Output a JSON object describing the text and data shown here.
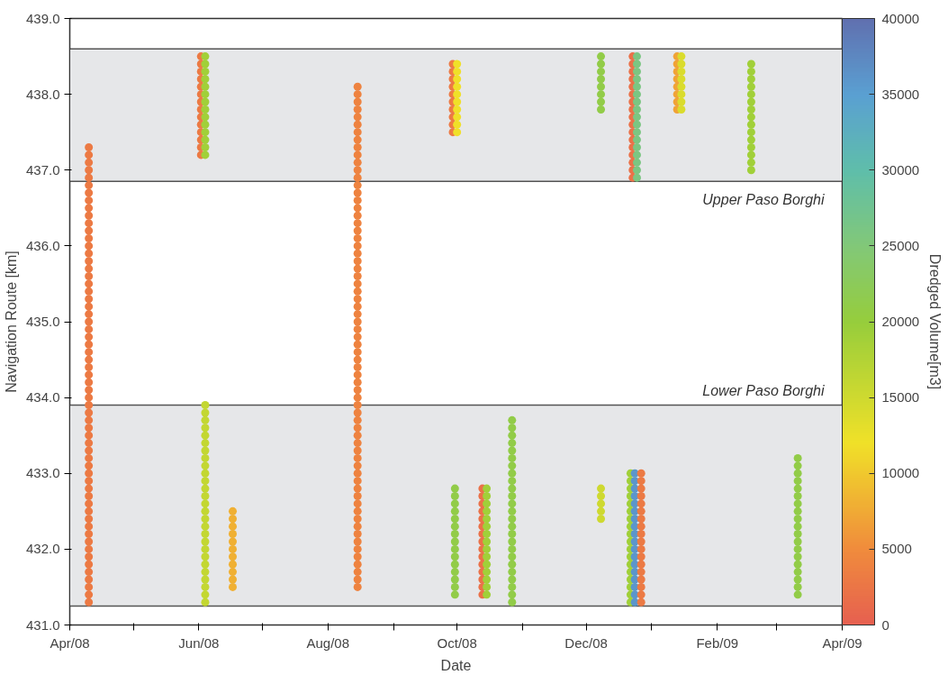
{
  "chart_data": {
    "type": "scatter",
    "xlabel": "Date",
    "ylabel": "Navigation Route [km]",
    "clabel": "Dredged Volume[m3]",
    "xlim": [
      "2008-04-01",
      "2009-04-01"
    ],
    "xticks": [
      {
        "value": "2008-04-01",
        "label": "Apr/08"
      },
      {
        "value": "2008-05-01",
        "label": null
      },
      {
        "value": "2008-06-01",
        "label": "Jun/08"
      },
      {
        "value": "2008-07-01",
        "label": null
      },
      {
        "value": "2008-08-01",
        "label": "Aug/08"
      },
      {
        "value": "2008-09-01",
        "label": null
      },
      {
        "value": "2008-10-01",
        "label": "Oct/08"
      },
      {
        "value": "2008-11-01",
        "label": null
      },
      {
        "value": "2008-12-01",
        "label": "Dec/08"
      },
      {
        "value": "2009-01-01",
        "label": null
      },
      {
        "value": "2009-02-01",
        "label": "Feb/09"
      },
      {
        "value": "2009-03-01",
        "label": null
      },
      {
        "value": "2009-04-01",
        "label": "Apr/09"
      }
    ],
    "ylim": [
      431,
      439
    ],
    "yticks": [
      {
        "value": 431,
        "label": "431.0"
      },
      {
        "value": 432,
        "label": "432.0"
      },
      {
        "value": 433,
        "label": "433.0"
      },
      {
        "value": 434,
        "label": "434.0"
      },
      {
        "value": 435,
        "label": "435.0"
      },
      {
        "value": 436,
        "label": "436.0"
      },
      {
        "value": 437,
        "label": "437.0"
      },
      {
        "value": 438,
        "label": "438.0"
      },
      {
        "value": 439,
        "label": "439.0"
      }
    ],
    "clim": [
      0,
      40000
    ],
    "cticks": [
      0,
      5000,
      10000,
      15000,
      20000,
      25000,
      30000,
      35000,
      40000
    ],
    "grid": false,
    "marker": "circle",
    "bands": [
      {
        "axis": "y",
        "from": 436.85,
        "to": 438.6,
        "label": "Upper Paso Borghi",
        "color": "#e6e7e9"
      },
      {
        "axis": "y",
        "from": 431.25,
        "to": 433.9,
        "label": "Lower Paso Borghi",
        "color": "#e6e7e9"
      }
    ],
    "series": [
      {
        "x": [
          "2008-04-10",
          "2008-04-10",
          "2008-04-10",
          "2008-04-10",
          "2008-04-10",
          "2008-04-10",
          "2008-04-10",
          "2008-04-10",
          "2008-04-10",
          "2008-04-10",
          "2008-04-10",
          "2008-04-10",
          "2008-04-10",
          "2008-04-10",
          "2008-04-10",
          "2008-04-10",
          "2008-04-10",
          "2008-04-10",
          "2008-04-10",
          "2008-04-10",
          "2008-04-10",
          "2008-04-10",
          "2008-04-10",
          "2008-04-10",
          "2008-04-10",
          "2008-04-10",
          "2008-04-10",
          "2008-04-10",
          "2008-04-10",
          "2008-04-10",
          "2008-04-10",
          "2008-04-10",
          "2008-04-10",
          "2008-04-10",
          "2008-04-10",
          "2008-04-10",
          "2008-04-10",
          "2008-04-10",
          "2008-04-10",
          "2008-04-10",
          "2008-04-10",
          "2008-04-10",
          "2008-04-10",
          "2008-04-10",
          "2008-04-10",
          "2008-04-10",
          "2008-04-10",
          "2008-04-10",
          "2008-04-10",
          "2008-04-10",
          "2008-04-10",
          "2008-04-10",
          "2008-04-10",
          "2008-04-10",
          "2008-04-10",
          "2008-04-10",
          "2008-04-10",
          "2008-04-10",
          "2008-04-10",
          "2008-04-10",
          "2008-04-10"
        ],
        "values": [
          431.3,
          431.4,
          431.5,
          431.6,
          431.7,
          431.8,
          431.9,
          432.0,
          432.1,
          432.2,
          432.3,
          432.4,
          432.5,
          432.6,
          432.7,
          432.8,
          432.9,
          433.0,
          433.1,
          433.2,
          433.3,
          433.4,
          433.5,
          433.6,
          433.7,
          433.8,
          433.9,
          434.0,
          434.1,
          434.2,
          434.3,
          434.4,
          434.5,
          434.6,
          434.7,
          434.8,
          434.9,
          435.0,
          435.1,
          435.2,
          435.3,
          435.4,
          435.5,
          435.6,
          435.7,
          435.8,
          435.9,
          436.0,
          436.1,
          436.2,
          436.3,
          436.4,
          436.5,
          436.6,
          436.7,
          436.8,
          436.9,
          437.0,
          437.1,
          437.2,
          437.3
        ],
        "cvalues": [
          3000,
          3000,
          3000,
          3000,
          3000,
          3000,
          3000,
          3000,
          3000,
          3000,
          3000,
          3000,
          3000,
          3000,
          3000,
          3000,
          3000,
          3000,
          3000,
          3000,
          3000,
          3000,
          3000,
          3000,
          3000,
          3000,
          3000,
          3000,
          3000,
          3000,
          3000,
          3000,
          3000,
          3000,
          3000,
          3000,
          3000,
          3000,
          3000,
          3000,
          3000,
          3000,
          3000,
          3000,
          3000,
          3000,
          3000,
          3000,
          3000,
          3000,
          3000,
          3000,
          3000,
          3000,
          3000,
          3000,
          3000,
          3000,
          3000,
          3000,
          3000
        ]
      },
      {
        "x": [
          "2008-06-02",
          "2008-06-02",
          "2008-06-02",
          "2008-06-02",
          "2008-06-02",
          "2008-06-02",
          "2008-06-02",
          "2008-06-02",
          "2008-06-02",
          "2008-06-02",
          "2008-06-02",
          "2008-06-02",
          "2008-06-02",
          "2008-06-02"
        ],
        "values": [
          437.2,
          437.3,
          437.4,
          437.5,
          437.6,
          437.7,
          437.8,
          437.9,
          438.0,
          438.1,
          438.2,
          438.3,
          438.4,
          438.5
        ],
        "cvalues": [
          3000,
          3000,
          3000,
          3000,
          3000,
          3000,
          3000,
          3000,
          3000,
          3000,
          3000,
          3000,
          3000,
          3000
        ]
      },
      {
        "x": [
          "2008-06-04",
          "2008-06-04",
          "2008-06-04",
          "2008-06-04",
          "2008-06-04",
          "2008-06-04",
          "2008-06-04",
          "2008-06-04",
          "2008-06-04",
          "2008-06-04",
          "2008-06-04",
          "2008-06-04",
          "2008-06-04",
          "2008-06-04"
        ],
        "values": [
          437.2,
          437.3,
          437.4,
          437.5,
          437.6,
          437.7,
          437.8,
          437.9,
          438.0,
          438.1,
          438.2,
          438.3,
          438.4,
          438.5
        ],
        "cvalues": [
          19000,
          19000,
          19000,
          19000,
          19000,
          19000,
          19000,
          19000,
          19000,
          19000,
          19000,
          19000,
          19000,
          19000
        ]
      },
      {
        "x": [
          "2008-06-04",
          "2008-06-04",
          "2008-06-04",
          "2008-06-04",
          "2008-06-04",
          "2008-06-04",
          "2008-06-04",
          "2008-06-04",
          "2008-06-04",
          "2008-06-04",
          "2008-06-04",
          "2008-06-04",
          "2008-06-04",
          "2008-06-04",
          "2008-06-04",
          "2008-06-04",
          "2008-06-04",
          "2008-06-04",
          "2008-06-04",
          "2008-06-04",
          "2008-06-04",
          "2008-06-04",
          "2008-06-04",
          "2008-06-04",
          "2008-06-04",
          "2008-06-04",
          "2008-06-04"
        ],
        "values": [
          431.3,
          431.4,
          431.5,
          431.6,
          431.7,
          431.8,
          431.9,
          432.0,
          432.1,
          432.2,
          432.3,
          432.4,
          432.5,
          432.6,
          432.7,
          432.8,
          432.9,
          433.0,
          433.1,
          433.2,
          433.3,
          433.4,
          433.5,
          433.6,
          433.7,
          433.8,
          433.9
        ],
        "cvalues": [
          16000,
          16000,
          16000,
          16000,
          16000,
          16000,
          16000,
          16000,
          16000,
          16000,
          16000,
          16000,
          16000,
          16000,
          16000,
          16000,
          16000,
          16000,
          16000,
          16000,
          16000,
          16000,
          16000,
          16000,
          16000,
          16000,
          16000
        ]
      },
      {
        "x": [
          "2008-06-17",
          "2008-06-17",
          "2008-06-17",
          "2008-06-17",
          "2008-06-17",
          "2008-06-17",
          "2008-06-17",
          "2008-06-17",
          "2008-06-17",
          "2008-06-17",
          "2008-06-17"
        ],
        "values": [
          431.5,
          431.6,
          431.7,
          431.8,
          431.9,
          432.0,
          432.1,
          432.2,
          432.3,
          432.4,
          432.5
        ],
        "cvalues": [
          8000,
          8000,
          8000,
          8000,
          8000,
          8000,
          8000,
          8000,
          8000,
          8000,
          8000
        ]
      },
      {
        "x": [
          "2008-08-15",
          "2008-08-15",
          "2008-08-15",
          "2008-08-15",
          "2008-08-15",
          "2008-08-15",
          "2008-08-15",
          "2008-08-15",
          "2008-08-15",
          "2008-08-15",
          "2008-08-15",
          "2008-08-15",
          "2008-08-15",
          "2008-08-15",
          "2008-08-15",
          "2008-08-15",
          "2008-08-15",
          "2008-08-15",
          "2008-08-15",
          "2008-08-15",
          "2008-08-15",
          "2008-08-15",
          "2008-08-15",
          "2008-08-15",
          "2008-08-15",
          "2008-08-15",
          "2008-08-15",
          "2008-08-15",
          "2008-08-15",
          "2008-08-15",
          "2008-08-15",
          "2008-08-15",
          "2008-08-15",
          "2008-08-15",
          "2008-08-15",
          "2008-08-15",
          "2008-08-15",
          "2008-08-15",
          "2008-08-15",
          "2008-08-15",
          "2008-08-15",
          "2008-08-15",
          "2008-08-15",
          "2008-08-15",
          "2008-08-15",
          "2008-08-15",
          "2008-08-15",
          "2008-08-15",
          "2008-08-15",
          "2008-08-15",
          "2008-08-15",
          "2008-08-15",
          "2008-08-15",
          "2008-08-15",
          "2008-08-15",
          "2008-08-15",
          "2008-08-15",
          "2008-08-15",
          "2008-08-15",
          "2008-08-15",
          "2008-08-15",
          "2008-08-15",
          "2008-08-15",
          "2008-08-15",
          "2008-08-15",
          "2008-08-15",
          "2008-08-15"
        ],
        "values": [
          431.5,
          431.6,
          431.7,
          431.8,
          431.9,
          432.0,
          432.1,
          432.2,
          432.3,
          432.4,
          432.5,
          432.6,
          432.7,
          432.8,
          432.9,
          433.0,
          433.1,
          433.2,
          433.3,
          433.4,
          433.5,
          433.6,
          433.7,
          433.8,
          433.9,
          434.0,
          434.1,
          434.2,
          434.3,
          434.4,
          434.5,
          434.6,
          434.7,
          434.8,
          434.9,
          435.0,
          435.1,
          435.2,
          435.3,
          435.4,
          435.5,
          435.6,
          435.7,
          435.8,
          435.9,
          436.0,
          436.1,
          436.2,
          436.3,
          436.4,
          436.5,
          436.6,
          436.7,
          436.8,
          436.9,
          437.0,
          437.1,
          437.2,
          437.3,
          437.4,
          437.5,
          437.6,
          437.7,
          437.8,
          437.9,
          438.0,
          438.1
        ],
        "cvalues": [
          4000,
          4000,
          4000,
          4000,
          4000,
          4000,
          4000,
          4000,
          4000,
          4000,
          4000,
          4000,
          4000,
          4000,
          4000,
          4000,
          4000,
          4000,
          4000,
          4000,
          4000,
          4000,
          4000,
          4000,
          4000,
          4000,
          4000,
          4000,
          4000,
          4000,
          4000,
          4000,
          4000,
          4000,
          4000,
          4000,
          4000,
          4000,
          4000,
          4000,
          4000,
          4000,
          4000,
          4000,
          4000,
          4000,
          4000,
          4000,
          4000,
          4000,
          4000,
          4000,
          4000,
          4000,
          4000,
          4000,
          4000,
          4000,
          4000,
          4000,
          4000,
          4000,
          4000,
          4000,
          4000,
          4000,
          4000
        ]
      },
      {
        "x": [
          "2008-09-29",
          "2008-09-29",
          "2008-09-29",
          "2008-09-29",
          "2008-09-29",
          "2008-09-29",
          "2008-09-29",
          "2008-09-29",
          "2008-09-29",
          "2008-09-29"
        ],
        "values": [
          437.5,
          437.6,
          437.7,
          437.8,
          437.9,
          438.0,
          438.1,
          438.2,
          438.3,
          438.4
        ],
        "cvalues": [
          3000,
          3000,
          3000,
          3000,
          3000,
          3000,
          3000,
          3000,
          3000,
          3000
        ]
      },
      {
        "x": [
          "2008-10-01",
          "2008-10-01",
          "2008-10-01",
          "2008-10-01",
          "2008-10-01",
          "2008-10-01",
          "2008-10-01",
          "2008-10-01",
          "2008-10-01",
          "2008-10-01"
        ],
        "values": [
          437.5,
          437.6,
          437.7,
          437.8,
          437.9,
          438.0,
          438.1,
          438.2,
          438.3,
          438.4
        ],
        "cvalues": [
          12000,
          12000,
          12000,
          12000,
          12000,
          12000,
          12000,
          12000,
          12000,
          12000
        ]
      },
      {
        "x": [
          "2008-09-30",
          "2008-09-30",
          "2008-09-30",
          "2008-09-30",
          "2008-09-30",
          "2008-09-30",
          "2008-09-30",
          "2008-09-30",
          "2008-09-30",
          "2008-09-30",
          "2008-09-30",
          "2008-09-30",
          "2008-09-30",
          "2008-09-30",
          "2008-09-30"
        ],
        "values": [
          431.4,
          431.5,
          431.6,
          431.7,
          431.8,
          431.9,
          432.0,
          432.1,
          432.2,
          432.3,
          432.4,
          432.5,
          432.6,
          432.7,
          432.8
        ],
        "cvalues": [
          21000,
          21000,
          21000,
          21000,
          21000,
          21000,
          21000,
          21000,
          21000,
          21000,
          21000,
          21000,
          21000,
          21000,
          21000
        ]
      },
      {
        "x": [
          "2008-10-13",
          "2008-10-13",
          "2008-10-13",
          "2008-10-13",
          "2008-10-13",
          "2008-10-13",
          "2008-10-13",
          "2008-10-13",
          "2008-10-13",
          "2008-10-13",
          "2008-10-13",
          "2008-10-13",
          "2008-10-13",
          "2008-10-13",
          "2008-10-13"
        ],
        "values": [
          431.4,
          431.5,
          431.6,
          431.7,
          431.8,
          431.9,
          432.0,
          432.1,
          432.2,
          432.3,
          432.4,
          432.5,
          432.6,
          432.7,
          432.8
        ],
        "cvalues": [
          2000,
          2000,
          2000,
          2000,
          2000,
          2000,
          2000,
          2000,
          2000,
          2000,
          2000,
          2000,
          2000,
          2000,
          2000
        ]
      },
      {
        "x": [
          "2008-10-15",
          "2008-10-15",
          "2008-10-15",
          "2008-10-15",
          "2008-10-15",
          "2008-10-15",
          "2008-10-15",
          "2008-10-15",
          "2008-10-15",
          "2008-10-15",
          "2008-10-15",
          "2008-10-15",
          "2008-10-15",
          "2008-10-15",
          "2008-10-15"
        ],
        "values": [
          431.4,
          431.5,
          431.6,
          431.7,
          431.8,
          431.9,
          432.0,
          432.1,
          432.2,
          432.3,
          432.4,
          432.5,
          432.6,
          432.7,
          432.8
        ],
        "cvalues": [
          19000,
          19000,
          19000,
          19000,
          19000,
          19000,
          19000,
          19000,
          19000,
          19000,
          19000,
          19000,
          19000,
          19000,
          19000
        ]
      },
      {
        "x": [
          "2008-10-27",
          "2008-10-27",
          "2008-10-27",
          "2008-10-27",
          "2008-10-27",
          "2008-10-27",
          "2008-10-27",
          "2008-10-27",
          "2008-10-27",
          "2008-10-27",
          "2008-10-27",
          "2008-10-27",
          "2008-10-27",
          "2008-10-27",
          "2008-10-27",
          "2008-10-27",
          "2008-10-27",
          "2008-10-27",
          "2008-10-27",
          "2008-10-27",
          "2008-10-27",
          "2008-10-27",
          "2008-10-27",
          "2008-10-27",
          "2008-10-27"
        ],
        "values": [
          431.3,
          431.4,
          431.5,
          431.6,
          431.7,
          431.8,
          431.9,
          432.0,
          432.1,
          432.2,
          432.3,
          432.4,
          432.5,
          432.6,
          432.7,
          432.8,
          432.9,
          433.0,
          433.1,
          433.2,
          433.3,
          433.4,
          433.5,
          433.6,
          433.7
        ],
        "cvalues": [
          21000,
          21000,
          21000,
          21000,
          21000,
          21000,
          21000,
          21000,
          21000,
          21000,
          21000,
          21000,
          21000,
          21000,
          21000,
          21000,
          21000,
          21000,
          21000,
          21000,
          21000,
          21000,
          21000,
          21000,
          21000
        ]
      },
      {
        "x": [
          "2008-12-08",
          "2008-12-08",
          "2008-12-08",
          "2008-12-08",
          "2008-12-08",
          "2008-12-08",
          "2008-12-08",
          "2008-12-08"
        ],
        "values": [
          437.8,
          437.9,
          438.0,
          438.1,
          438.2,
          438.3,
          438.4,
          438.5
        ],
        "cvalues": [
          21000,
          21000,
          21000,
          21000,
          21000,
          21000,
          21000,
          21000
        ]
      },
      {
        "x": [
          "2008-12-08",
          "2008-12-08",
          "2008-12-08",
          "2008-12-08",
          "2008-12-08"
        ],
        "values": [
          432.4,
          432.5,
          432.6,
          432.7,
          432.8
        ],
        "cvalues": [
          15000,
          15000,
          15000,
          15000,
          15000
        ]
      },
      {
        "x": [
          "2008-12-23",
          "2008-12-23",
          "2008-12-23",
          "2008-12-23",
          "2008-12-23",
          "2008-12-23",
          "2008-12-23",
          "2008-12-23",
          "2008-12-23",
          "2008-12-23",
          "2008-12-23",
          "2008-12-23",
          "2008-12-23",
          "2008-12-23",
          "2008-12-23",
          "2008-12-23",
          "2008-12-23"
        ],
        "values": [
          436.9,
          437.0,
          437.1,
          437.2,
          437.3,
          437.4,
          437.5,
          437.6,
          437.7,
          437.8,
          437.9,
          438.0,
          438.1,
          438.2,
          438.3,
          438.4,
          438.5
        ],
        "cvalues": [
          2000,
          2000,
          2000,
          2000,
          2000,
          2000,
          2000,
          2000,
          2000,
          2000,
          2000,
          2000,
          2000,
          2000,
          2000,
          2000,
          2000
        ]
      },
      {
        "x": [
          "2008-12-25",
          "2008-12-25",
          "2008-12-25",
          "2008-12-25",
          "2008-12-25",
          "2008-12-25",
          "2008-12-25",
          "2008-12-25",
          "2008-12-25",
          "2008-12-25",
          "2008-12-25",
          "2008-12-25",
          "2008-12-25",
          "2008-12-25",
          "2008-12-25",
          "2008-12-25",
          "2008-12-25"
        ],
        "values": [
          436.9,
          437.0,
          437.1,
          437.2,
          437.3,
          437.4,
          437.5,
          437.6,
          437.7,
          437.8,
          437.9,
          438.0,
          438.1,
          438.2,
          438.3,
          438.4,
          438.5
        ],
        "cvalues": [
          26000,
          26000,
          26000,
          26000,
          26000,
          26000,
          26000,
          26000,
          26000,
          26000,
          26000,
          26000,
          26000,
          26000,
          26000,
          26000,
          26000
        ]
      },
      {
        "x": [
          "2008-12-22",
          "2008-12-22",
          "2008-12-22",
          "2008-12-22",
          "2008-12-22",
          "2008-12-22",
          "2008-12-22",
          "2008-12-22",
          "2008-12-22",
          "2008-12-22",
          "2008-12-22",
          "2008-12-22",
          "2008-12-22",
          "2008-12-22",
          "2008-12-22",
          "2008-12-22",
          "2008-12-22",
          "2008-12-22"
        ],
        "values": [
          431.3,
          431.4,
          431.5,
          431.6,
          431.7,
          431.8,
          431.9,
          432.0,
          432.1,
          432.2,
          432.3,
          432.4,
          432.5,
          432.6,
          432.7,
          432.8,
          432.9,
          433.0
        ],
        "cvalues": [
          19000,
          19000,
          19000,
          19000,
          19000,
          19000,
          19000,
          19000,
          19000,
          19000,
          19000,
          19000,
          19000,
          19000,
          19000,
          19000,
          19000,
          19000
        ]
      },
      {
        "x": [
          "2008-12-24",
          "2008-12-24",
          "2008-12-24",
          "2008-12-24",
          "2008-12-24",
          "2008-12-24",
          "2008-12-24",
          "2008-12-24",
          "2008-12-24",
          "2008-12-24",
          "2008-12-24",
          "2008-12-24",
          "2008-12-24",
          "2008-12-24",
          "2008-12-24",
          "2008-12-24",
          "2008-12-24",
          "2008-12-24"
        ],
        "values": [
          431.3,
          431.4,
          431.5,
          431.6,
          431.7,
          431.8,
          431.9,
          432.0,
          432.1,
          432.2,
          432.3,
          432.4,
          432.5,
          432.6,
          432.7,
          432.8,
          432.9,
          433.0
        ],
        "cvalues": [
          36000,
          36000,
          36000,
          36000,
          36000,
          36000,
          36000,
          36000,
          36000,
          36000,
          36000,
          36000,
          36000,
          36000,
          36000,
          36000,
          36000,
          36000
        ]
      },
      {
        "x": [
          "2008-12-27",
          "2008-12-27",
          "2008-12-27",
          "2008-12-27",
          "2008-12-27",
          "2008-12-27",
          "2008-12-27",
          "2008-12-27",
          "2008-12-27",
          "2008-12-27",
          "2008-12-27",
          "2008-12-27",
          "2008-12-27",
          "2008-12-27",
          "2008-12-27",
          "2008-12-27",
          "2008-12-27",
          "2008-12-27"
        ],
        "values": [
          431.3,
          431.4,
          431.5,
          431.6,
          431.7,
          431.8,
          431.9,
          432.0,
          432.1,
          432.2,
          432.3,
          432.4,
          432.5,
          432.6,
          432.7,
          432.8,
          432.9,
          433.0
        ],
        "cvalues": [
          3000,
          3000,
          3000,
          3000,
          3000,
          3000,
          3000,
          3000,
          3000,
          3000,
          3000,
          3000,
          3000,
          3000,
          3000,
          3000,
          3000,
          3000
        ]
      },
      {
        "x": [
          "2009-01-13",
          "2009-01-13",
          "2009-01-13",
          "2009-01-13",
          "2009-01-13",
          "2009-01-13",
          "2009-01-13",
          "2009-01-13"
        ],
        "values": [
          437.8,
          437.9,
          438.0,
          438.1,
          438.2,
          438.3,
          438.4,
          438.5
        ],
        "cvalues": [
          7000,
          7000,
          7000,
          7000,
          7000,
          7000,
          7000,
          7000
        ]
      },
      {
        "x": [
          "2009-01-15",
          "2009-01-15",
          "2009-01-15",
          "2009-01-15",
          "2009-01-15",
          "2009-01-15",
          "2009-01-15",
          "2009-01-15"
        ],
        "values": [
          437.8,
          437.9,
          438.0,
          438.1,
          438.2,
          438.3,
          438.4,
          438.5
        ],
        "cvalues": [
          14000,
          14000,
          14000,
          14000,
          14000,
          14000,
          14000,
          14000
        ]
      },
      {
        "x": [
          "2009-02-17",
          "2009-02-17",
          "2009-02-17",
          "2009-02-17",
          "2009-02-17",
          "2009-02-17",
          "2009-02-17",
          "2009-02-17",
          "2009-02-17",
          "2009-02-17",
          "2009-02-17",
          "2009-02-17",
          "2009-02-17",
          "2009-02-17",
          "2009-02-17"
        ],
        "values": [
          437.0,
          437.1,
          437.2,
          437.3,
          437.4,
          437.5,
          437.6,
          437.7,
          437.8,
          437.9,
          438.0,
          438.1,
          438.2,
          438.3,
          438.4
        ],
        "cvalues": [
          19000,
          19000,
          19000,
          19000,
          19000,
          19000,
          19000,
          19000,
          19000,
          19000,
          19000,
          19000,
          19000,
          19000,
          19000
        ]
      },
      {
        "x": [
          "2009-03-11",
          "2009-03-11",
          "2009-03-11",
          "2009-03-11",
          "2009-03-11",
          "2009-03-11",
          "2009-03-11",
          "2009-03-11",
          "2009-03-11",
          "2009-03-11",
          "2009-03-11",
          "2009-03-11",
          "2009-03-11",
          "2009-03-11",
          "2009-03-11",
          "2009-03-11",
          "2009-03-11",
          "2009-03-11",
          "2009-03-11"
        ],
        "values": [
          431.4,
          431.5,
          431.6,
          431.7,
          431.8,
          431.9,
          432.0,
          432.1,
          432.2,
          432.3,
          432.4,
          432.5,
          432.6,
          432.7,
          432.8,
          432.9,
          433.0,
          433.1,
          433.2
        ],
        "cvalues": [
          21000,
          21000,
          21000,
          21000,
          21000,
          21000,
          21000,
          21000,
          21000,
          21000,
          21000,
          21000,
          21000,
          21000,
          21000,
          21000,
          21000,
          21000,
          21000
        ]
      }
    ]
  }
}
